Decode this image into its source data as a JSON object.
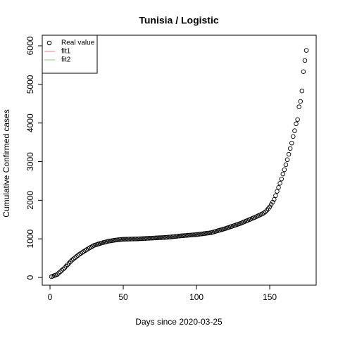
{
  "chart_data": {
    "type": "scatter",
    "title": "Tunisia / Logistic",
    "xlabel": "Days since 2020-03-25",
    "ylabel": "Cumulative Confirmed cases",
    "series": [
      {
        "name": "Real value",
        "color": "#000000",
        "x": [
          1,
          2,
          3,
          4,
          5,
          6,
          7,
          8,
          9,
          10,
          11,
          12,
          13,
          14,
          15,
          16,
          17,
          18,
          19,
          20,
          21,
          22,
          23,
          24,
          25,
          26,
          27,
          28,
          29,
          30,
          31,
          32,
          33,
          34,
          35,
          36,
          37,
          38,
          39,
          40,
          41,
          42,
          43,
          44,
          45,
          46,
          47,
          48,
          49,
          50,
          51,
          52,
          53,
          54,
          55,
          56,
          57,
          58,
          59,
          60,
          61,
          62,
          63,
          64,
          65,
          66,
          67,
          68,
          69,
          70,
          71,
          72,
          73,
          74,
          75,
          76,
          77,
          78,
          79,
          80,
          81,
          82,
          83,
          84,
          85,
          86,
          87,
          88,
          89,
          90,
          91,
          92,
          93,
          94,
          95,
          96,
          97,
          98,
          99,
          100,
          101,
          102,
          103,
          104,
          105,
          106,
          107,
          108,
          109,
          110,
          111,
          112,
          113,
          114,
          115,
          116,
          117,
          118,
          119,
          120,
          121,
          122,
          123,
          124,
          125,
          126,
          127,
          128,
          129,
          130,
          131,
          132,
          133,
          134,
          135,
          136,
          137,
          138,
          139,
          140,
          141,
          142,
          143,
          144,
          145,
          146,
          147,
          148,
          149,
          150,
          151,
          152,
          153,
          154,
          155,
          156,
          157,
          158,
          159,
          160,
          161,
          162,
          163,
          164,
          165,
          166,
          167,
          168,
          169,
          170,
          171,
          172,
          173,
          174,
          175
        ],
        "values": [
          20,
          35,
          50,
          65,
          80,
          114,
          148,
          182,
          216,
          250,
          290,
          330,
          370,
          410,
          450,
          480,
          510,
          540,
          570,
          600,
          624,
          648,
          672,
          696,
          720,
          742,
          764,
          786,
          808,
          830,
          842,
          854,
          866,
          878,
          890,
          900,
          910,
          920,
          930,
          940,
          946,
          952,
          958,
          964,
          970,
          974,
          978,
          982,
          986,
          990,
          991,
          992,
          993,
          994,
          995,
          996,
          997,
          998,
          999,
          1000,
          1002,
          1004,
          1006,
          1008,
          1010,
          1012,
          1014,
          1016,
          1018,
          1020,
          1022,
          1024,
          1026,
          1028,
          1030,
          1032,
          1034,
          1036,
          1038,
          1040,
          1044,
          1048,
          1052,
          1056,
          1060,
          1064,
          1068,
          1072,
          1076,
          1080,
          1083,
          1086,
          1089,
          1092,
          1095,
          1098,
          1101,
          1104,
          1107,
          1110,
          1115,
          1120,
          1125,
          1130,
          1135,
          1140,
          1145,
          1150,
          1155,
          1160,
          1171,
          1182,
          1193,
          1204,
          1215,
          1226,
          1237,
          1248,
          1259,
          1270,
          1283,
          1296,
          1309,
          1322,
          1335,
          1348,
          1361,
          1374,
          1387,
          1400,
          1416,
          1432,
          1448,
          1464,
          1480,
          1496,
          1512,
          1528,
          1544,
          1560,
          1578,
          1596,
          1614,
          1632,
          1650,
          1670,
          1700,
          1740,
          1780,
          1830,
          1890,
          1950,
          2020,
          2120,
          2230,
          2330,
          2440,
          2550,
          2680,
          2790,
          2920,
          3050,
          3190,
          3340,
          3480,
          3650,
          3800,
          3980,
          4090,
          4420,
          4560,
          4830,
          5330,
          5620,
          5880
        ]
      }
    ],
    "legend": [
      {
        "name": "Real value",
        "symbol": "circle",
        "color": "#000000"
      },
      {
        "name": "fit1",
        "symbol": "line",
        "color": "#f08080"
      },
      {
        "name": "fit2",
        "symbol": "line",
        "color": "#7fc97f"
      }
    ],
    "legend_position": "top-left",
    "xlim": [
      -5.3,
      181.7
    ],
    "xticks": [
      0,
      50,
      100,
      150
    ],
    "ylim": [
      -200,
      6274
    ],
    "yticks": [
      0,
      1000,
      2000,
      3000,
      4000,
      5000,
      6000
    ]
  }
}
